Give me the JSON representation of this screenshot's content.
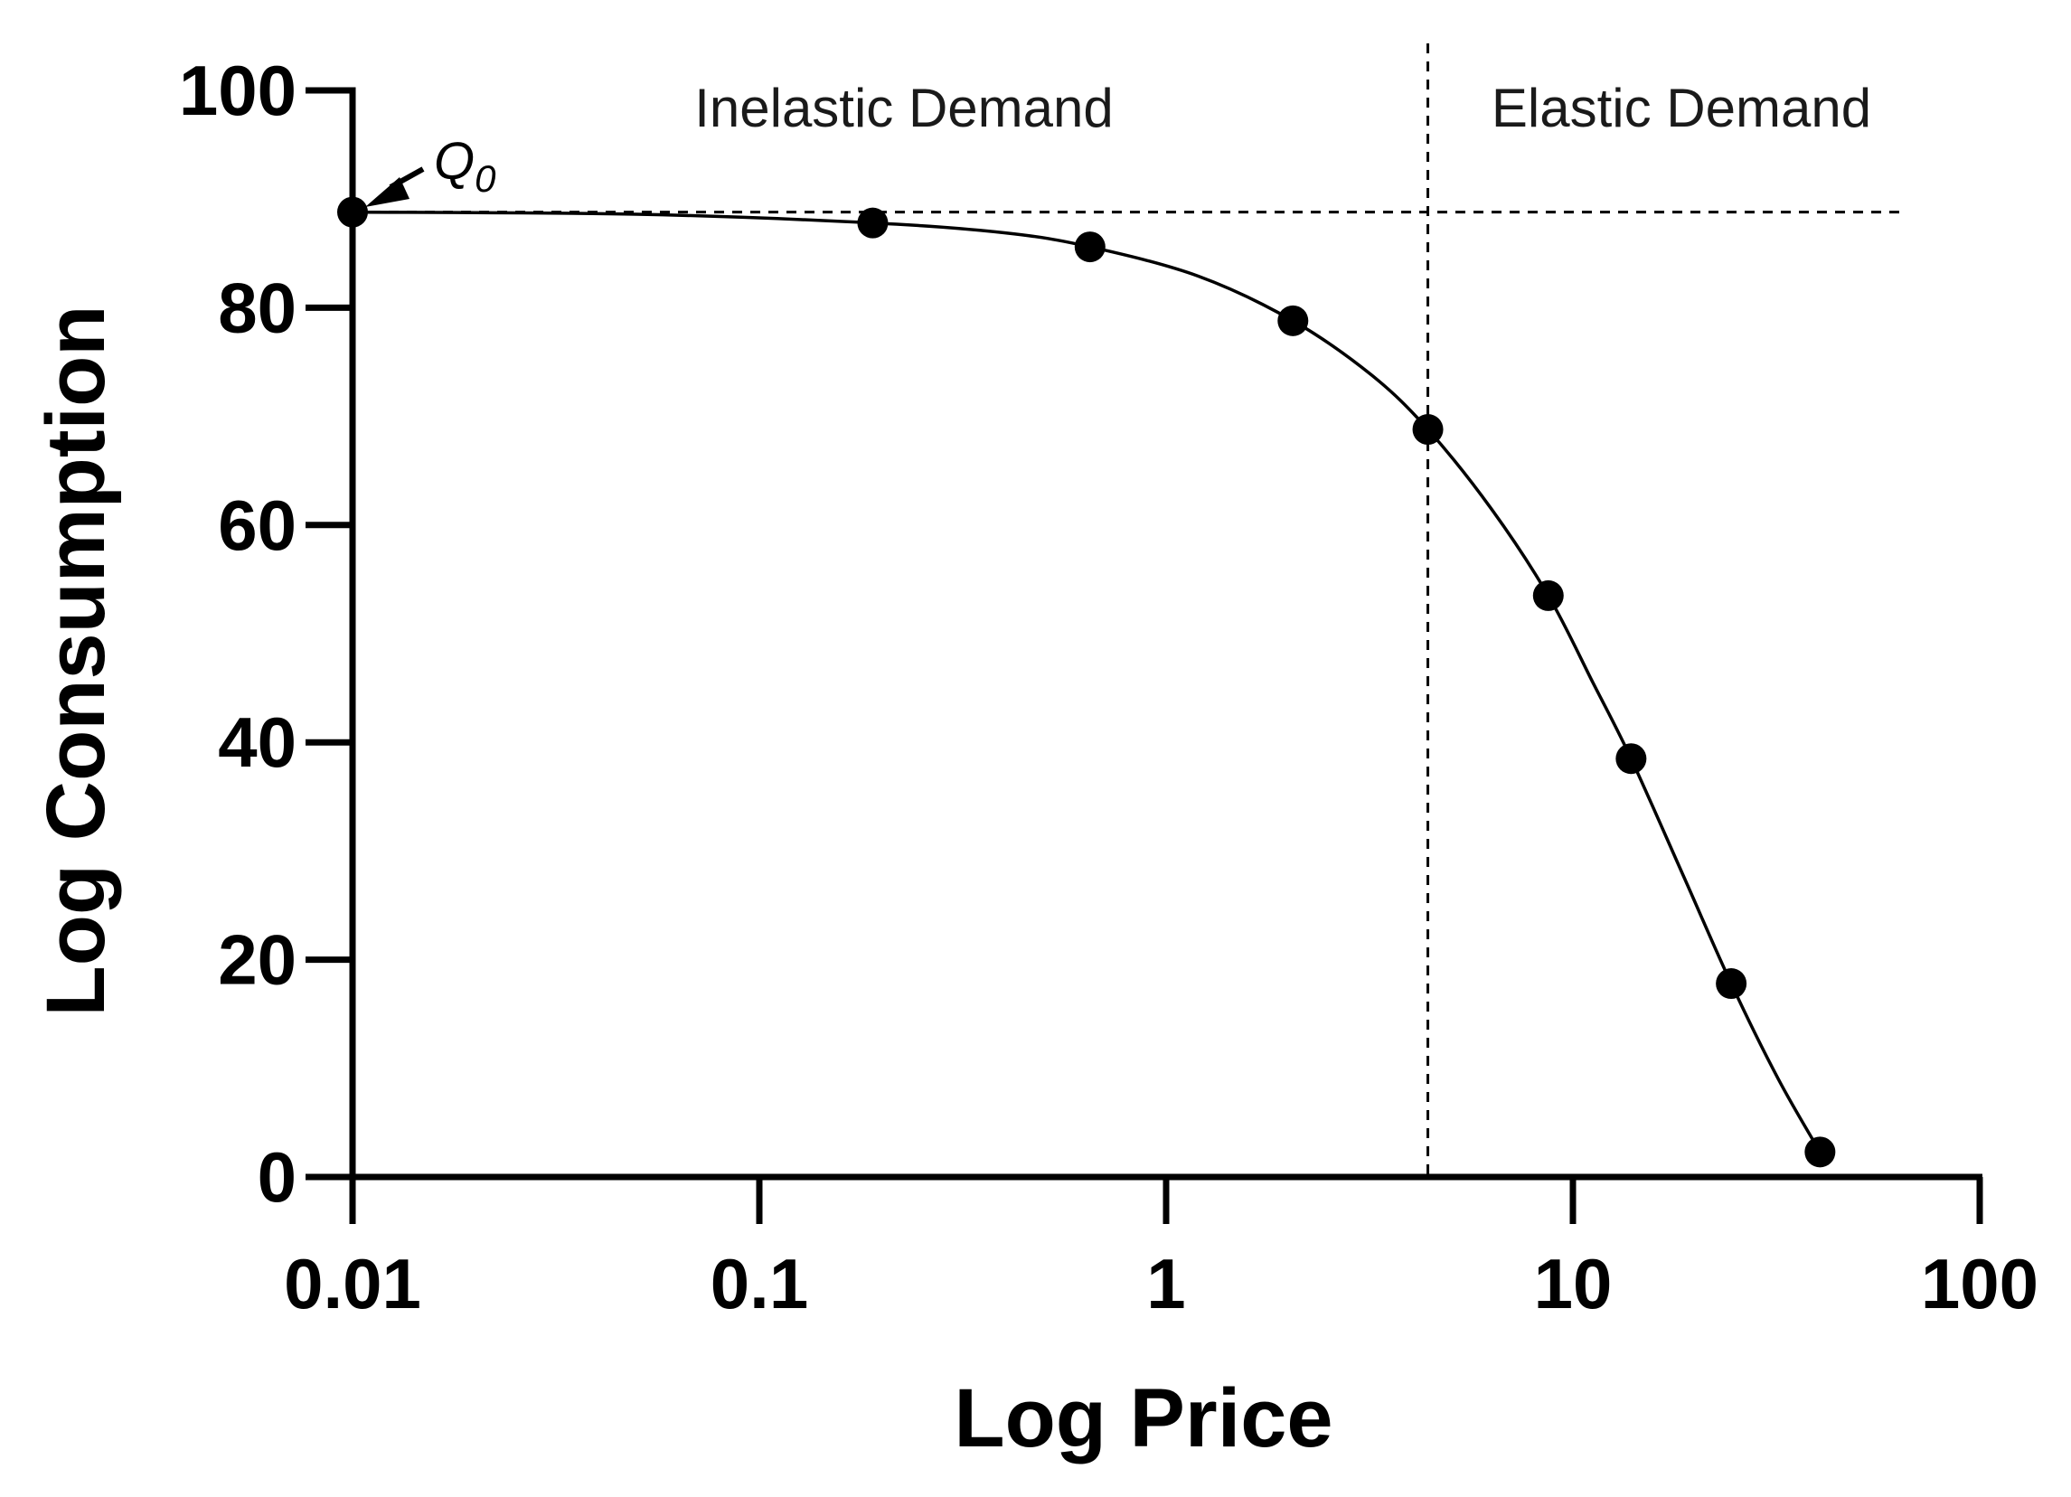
{
  "chart_data": {
    "type": "line",
    "xlabel": "Log Price",
    "ylabel": "Log Consumption",
    "x_scale": "log",
    "xlim": [
      0.01,
      100
    ],
    "ylim": [
      0,
      100
    ],
    "x_ticks": [
      {
        "value": 0.01,
        "label": "0.01"
      },
      {
        "value": 0.1,
        "label": "0.1"
      },
      {
        "value": 1,
        "label": "1"
      },
      {
        "value": 10,
        "label": "10"
      },
      {
        "value": 100,
        "label": "100"
      }
    ],
    "y_ticks": [
      {
        "value": 0,
        "label": "0"
      },
      {
        "value": 20,
        "label": "20"
      },
      {
        "value": 40,
        "label": "40"
      },
      {
        "value": 60,
        "label": "60"
      },
      {
        "value": 80,
        "label": "80"
      },
      {
        "value": 100,
        "label": "100"
      }
    ],
    "grid": false,
    "series": [
      {
        "points": [
          {
            "x": 0.01,
            "y": 88.8
          },
          {
            "x": 0.19,
            "y": 87.8
          },
          {
            "x": 0.65,
            "y": 85.6
          },
          {
            "x": 2.05,
            "y": 78.8
          },
          {
            "x": 4.4,
            "y": 68.8
          },
          {
            "x": 8.7,
            "y": 53.5
          },
          {
            "x": 13.9,
            "y": 38.5
          },
          {
            "x": 24.5,
            "y": 17.8
          },
          {
            "x": 40.5,
            "y": 2.3
          }
        ]
      }
    ],
    "fitted_curve": [
      {
        "x": 0.01,
        "y": 88.8
      },
      {
        "x": 0.05,
        "y": 88.6
      },
      {
        "x": 0.19,
        "y": 87.8
      },
      {
        "x": 0.4,
        "y": 86.9
      },
      {
        "x": 0.65,
        "y": 85.6
      },
      {
        "x": 1.2,
        "y": 82.9
      },
      {
        "x": 2.05,
        "y": 78.8
      },
      {
        "x": 3.2,
        "y": 73.8
      },
      {
        "x": 4.4,
        "y": 68.8
      },
      {
        "x": 6.3,
        "y": 61.5
      },
      {
        "x": 8.7,
        "y": 53.5
      },
      {
        "x": 11.2,
        "y": 45.5
      },
      {
        "x": 13.9,
        "y": 38.5
      },
      {
        "x": 18.8,
        "y": 27.5
      },
      {
        "x": 24.5,
        "y": 17.8
      },
      {
        "x": 32,
        "y": 9.0
      },
      {
        "x": 40.5,
        "y": 2.3
      }
    ],
    "reference_lines": {
      "q0_level": 88.8,
      "elasticity_split_x": 4.4
    },
    "annotations": {
      "inelastic": "Inelastic Demand",
      "elastic": "Elastic Demand",
      "q0_main": "Q",
      "q0_sub": "0"
    },
    "colors": {
      "line": "#000000",
      "marker": "#000000",
      "reference": "#000000",
      "background": "#ffffff"
    }
  }
}
